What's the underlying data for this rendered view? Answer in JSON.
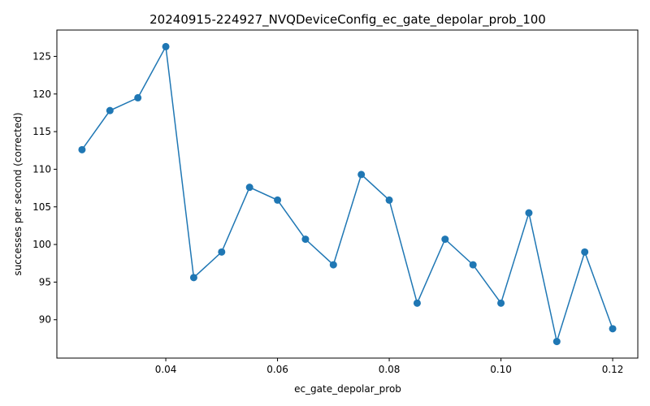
{
  "chart_data": {
    "type": "line",
    "title": "20240915-224927_NVQDeviceConfig_ec_gate_depolar_prob_100",
    "xlabel": "ec_gate_depolar_prob",
    "ylabel": "successes per second (corrected)",
    "xlim": [
      0.0205,
      0.1245
    ],
    "ylim": [
      84.9,
      128.5
    ],
    "xticks": [
      0.04,
      0.06,
      0.08,
      0.1,
      0.12
    ],
    "xtick_labels": [
      "0.04",
      "0.06",
      "0.08",
      "0.10",
      "0.12"
    ],
    "yticks": [
      90,
      95,
      100,
      105,
      110,
      115,
      120,
      125
    ],
    "ytick_labels": [
      "90",
      "95",
      "100",
      "105",
      "110",
      "115",
      "120",
      "125"
    ],
    "grid": false,
    "marker": "circle",
    "color": "#1f77b4",
    "series": [
      {
        "x": [
          0.025,
          0.03,
          0.035,
          0.04,
          0.045,
          0.05,
          0.055,
          0.06,
          0.065,
          0.07,
          0.075,
          0.08,
          0.085,
          0.09,
          0.095,
          0.1,
          0.105,
          0.11,
          0.115,
          0.12
        ],
        "y": [
          112.6,
          117.8,
          119.5,
          126.3,
          95.6,
          99.0,
          107.6,
          105.9,
          100.7,
          97.3,
          109.3,
          105.9,
          92.2,
          100.7,
          97.3,
          92.2,
          104.2,
          87.1,
          99.0,
          88.8
        ]
      }
    ]
  }
}
